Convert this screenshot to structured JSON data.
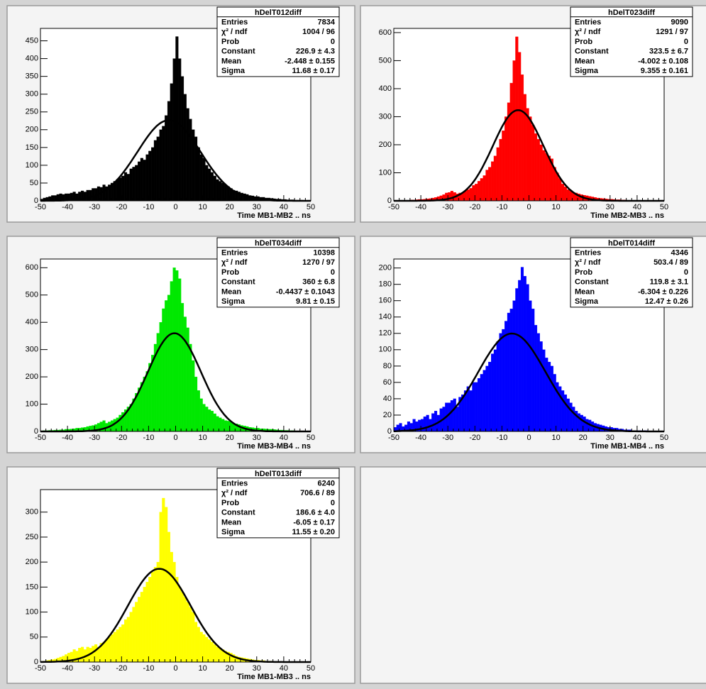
{
  "chart_data": [
    {
      "type": "histogram",
      "title": "hDelT012diff",
      "x_label": "Time MB1-MB2  ..  ns",
      "color": "#000000",
      "fit_color": "#000000",
      "bins": [
        -50,
        -49,
        -48,
        -47,
        -46,
        -45,
        -44,
        -43,
        -42,
        -41,
        -40,
        -39,
        -38,
        -37,
        -36,
        -35,
        -34,
        -33,
        -32,
        -31,
        -30,
        -29,
        -28,
        -27,
        -26,
        -25,
        -24,
        -23,
        -22,
        -21,
        -20,
        -19,
        -18,
        -17,
        -16,
        -15,
        -14,
        -13,
        -12,
        -11,
        -10,
        -9,
        -8,
        -7,
        -6,
        -5,
        -4,
        -3,
        -2,
        -1,
        0,
        1,
        2,
        3,
        4,
        5,
        6,
        7,
        8,
        9,
        10,
        11,
        12,
        13,
        14,
        15,
        16,
        17,
        18,
        19,
        20,
        21,
        22,
        23,
        24,
        25,
        26,
        27,
        28,
        29,
        30,
        31,
        32,
        33,
        34,
        35,
        36,
        37,
        38,
        39,
        40,
        41,
        42,
        43,
        44,
        45,
        46,
        47,
        48,
        49,
        50
      ],
      "values": [
        5,
        8,
        10,
        12,
        15,
        15,
        18,
        20,
        18,
        20,
        20,
        22,
        25,
        20,
        25,
        28,
        25,
        30,
        30,
        35,
        35,
        40,
        38,
        45,
        40,
        45,
        50,
        55,
        60,
        65,
        70,
        80,
        75,
        90,
        95,
        100,
        110,
        120,
        115,
        130,
        140,
        150,
        170,
        180,
        200,
        210,
        240,
        280,
        330,
        400,
        462,
        400,
        350,
        300,
        260,
        230,
        200,
        180,
        150,
        130,
        120,
        100,
        90,
        80,
        70,
        60,
        55,
        50,
        45,
        40,
        35,
        30,
        28,
        25,
        22,
        20,
        18,
        15,
        14,
        12,
        12,
        10,
        10,
        8,
        8,
        7,
        6,
        5,
        5,
        4,
        4,
        3,
        3,
        3,
        2,
        2,
        2,
        1,
        1,
        1
      ],
      "xlim": [
        -50,
        50
      ],
      "xticks": [
        -50,
        -40,
        -30,
        -20,
        -10,
        0,
        10,
        20,
        30,
        40,
        50
      ],
      "ylim": [
        0,
        485
      ],
      "yticks": [
        0,
        50,
        100,
        150,
        200,
        250,
        300,
        350,
        400,
        450
      ],
      "stats": [
        {
          "name": "Entries",
          "value": 7834
        },
        {
          "name": "χ² / ndf",
          "value": "1004 / 96"
        },
        {
          "name": "Prob",
          "value": 0
        },
        {
          "name": "Constant",
          "value": {
            "value": 226.9,
            "error": 4.3,
            "label": "226.9 ± 4.3"
          }
        },
        {
          "name": "Mean",
          "value": {
            "value": -2.448,
            "error": 0.155,
            "label": "-2.448 ± 0.155"
          }
        },
        {
          "name": "Sigma",
          "value": {
            "value": 11.68,
            "error": 0.17,
            "label": "11.68 ± 0.17"
          }
        }
      ]
    },
    {
      "type": "histogram",
      "title": "hDelT023diff",
      "x_label": "Time MB2-MB3  ..  ns",
      "color": "#ff0000",
      "fit_color": "#000000",
      "bins": [
        -50,
        -49,
        -48,
        -47,
        -46,
        -45,
        -44,
        -43,
        -42,
        -41,
        -40,
        -39,
        -38,
        -37,
        -36,
        -35,
        -34,
        -33,
        -32,
        -31,
        -30,
        -29,
        -28,
        -27,
        -26,
        -25,
        -24,
        -23,
        -22,
        -21,
        -20,
        -19,
        -18,
        -17,
        -16,
        -15,
        -14,
        -13,
        -12,
        -11,
        -10,
        -9,
        -8,
        -7,
        -6,
        -5,
        -4,
        -3,
        -2,
        -1,
        0,
        1,
        2,
        3,
        4,
        5,
        6,
        7,
        8,
        9,
        10,
        11,
        12,
        13,
        14,
        15,
        16,
        17,
        18,
        19,
        20,
        21,
        22,
        23,
        24,
        25,
        26,
        27,
        28,
        29,
        30,
        31,
        32,
        33,
        34,
        35,
        36,
        37,
        38,
        39,
        40,
        41,
        42,
        43,
        44,
        45,
        46,
        47,
        48,
        49,
        50
      ],
      "values": [
        0,
        0,
        1,
        1,
        2,
        2,
        3,
        3,
        4,
        5,
        5,
        6,
        7,
        8,
        10,
        12,
        15,
        18,
        22,
        28,
        30,
        35,
        30,
        25,
        28,
        30,
        35,
        40,
        45,
        55,
        60,
        70,
        80,
        90,
        110,
        120,
        140,
        160,
        190,
        220,
        250,
        300,
        350,
        420,
        500,
        585,
        530,
        450,
        380,
        330,
        300,
        270,
        240,
        220,
        200,
        180,
        170,
        160,
        150,
        120,
        100,
        80,
        60,
        50,
        40,
        35,
        30,
        28,
        25,
        22,
        20,
        18,
        16,
        14,
        12,
        10,
        9,
        8,
        7,
        6,
        6,
        5,
        4,
        4,
        3,
        3,
        2,
        2,
        2,
        1,
        1,
        1,
        1,
        1,
        0,
        0,
        0,
        0,
        0,
        0
      ],
      "xlim": [
        -50,
        50
      ],
      "xticks": [
        -50,
        -40,
        -30,
        -20,
        -10,
        0,
        10,
        20,
        30,
        40,
        50
      ],
      "ylim": [
        0,
        615
      ],
      "yticks": [
        0,
        100,
        200,
        300,
        400,
        500,
        600
      ],
      "stats": [
        {
          "name": "Entries",
          "value": 9090
        },
        {
          "name": "χ² / ndf",
          "value": "1291 / 97"
        },
        {
          "name": "Prob",
          "value": 0
        },
        {
          "name": "Constant",
          "value": {
            "value": 323.5,
            "error": 6.7,
            "label": "323.5 ± 6.7"
          }
        },
        {
          "name": "Mean",
          "value": {
            "value": -4.002,
            "error": 0.108,
            "label": "-4.002 ± 0.108"
          }
        },
        {
          "name": "Sigma",
          "value": {
            "value": 9.355,
            "error": 0.161,
            "label": "9.355 ± 0.161"
          }
        }
      ]
    },
    {
      "type": "histogram",
      "title": "hDelT034diff",
      "x_label": "Time MB3-MB4  ..  ns",
      "color": "#00e800",
      "fit_color": "#000000",
      "bins": [
        -50,
        -49,
        -48,
        -47,
        -46,
        -45,
        -44,
        -43,
        -42,
        -41,
        -40,
        -39,
        -38,
        -37,
        -36,
        -35,
        -34,
        -33,
        -32,
        -31,
        -30,
        -29,
        -28,
        -27,
        -26,
        -25,
        -24,
        -23,
        -22,
        -21,
        -20,
        -19,
        -18,
        -17,
        -16,
        -15,
        -14,
        -13,
        -12,
        -11,
        -10,
        -9,
        -8,
        -7,
        -6,
        -5,
        -4,
        -3,
        -2,
        -1,
        0,
        1,
        2,
        3,
        4,
        5,
        6,
        7,
        8,
        9,
        10,
        11,
        12,
        13,
        14,
        15,
        16,
        17,
        18,
        19,
        20,
        21,
        22,
        23,
        24,
        25,
        26,
        27,
        28,
        29,
        30,
        31,
        32,
        33,
        34,
        35,
        36,
        37,
        38,
        39,
        40,
        41,
        42,
        43,
        44,
        45,
        46,
        47,
        48,
        49,
        50
      ],
      "values": [
        2,
        3,
        3,
        4,
        4,
        5,
        5,
        6,
        6,
        8,
        8,
        9,
        10,
        12,
        12,
        14,
        15,
        18,
        20,
        22,
        25,
        30,
        35,
        40,
        30,
        35,
        40,
        45,
        50,
        60,
        70,
        80,
        90,
        100,
        120,
        140,
        160,
        180,
        200,
        220,
        250,
        280,
        320,
        360,
        400,
        450,
        480,
        500,
        550,
        600,
        590,
        560,
        470,
        420,
        380,
        320,
        260,
        200,
        150,
        120,
        100,
        90,
        80,
        75,
        65,
        55,
        50,
        45,
        40,
        38,
        35,
        30,
        28,
        25,
        22,
        20,
        18,
        15,
        14,
        12,
        12,
        10,
        10,
        9,
        8,
        8,
        7,
        6,
        5,
        5,
        4,
        4,
        3,
        3,
        2,
        2,
        2,
        1,
        1,
        1
      ],
      "xlim": [
        -50,
        50
      ],
      "xticks": [
        -50,
        -40,
        -30,
        -20,
        -10,
        0,
        10,
        20,
        30,
        40,
        50
      ],
      "ylim": [
        0,
        632
      ],
      "yticks": [
        0,
        100,
        200,
        300,
        400,
        500,
        600
      ],
      "stats": [
        {
          "name": "Entries",
          "value": 10398
        },
        {
          "name": "χ² / ndf",
          "value": "1270 / 97"
        },
        {
          "name": "Prob",
          "value": 0
        },
        {
          "name": "Constant",
          "value": {
            "value": 360,
            "error": 6.8,
            "label": "360 ± 6.8"
          }
        },
        {
          "name": "Mean",
          "value": {
            "value": -0.4437,
            "error": 0.1043,
            "label": "-0.4437 ± 0.1043"
          }
        },
        {
          "name": "Sigma",
          "value": {
            "value": 9.81,
            "error": 0.15,
            "label": "9.81 ± 0.15"
          }
        }
      ]
    },
    {
      "type": "histogram",
      "title": "hDelT014diff",
      "x_label": "Time MB1-MB4  ..  ns",
      "color": "#0000ff",
      "fit_color": "#000000",
      "bins": [
        -50,
        -49,
        -48,
        -47,
        -46,
        -45,
        -44,
        -43,
        -42,
        -41,
        -40,
        -39,
        -38,
        -37,
        -36,
        -35,
        -34,
        -33,
        -32,
        -31,
        -30,
        -29,
        -28,
        -27,
        -26,
        -25,
        -24,
        -23,
        -22,
        -21,
        -20,
        -19,
        -18,
        -17,
        -16,
        -15,
        -14,
        -13,
        -12,
        -11,
        -10,
        -9,
        -8,
        -7,
        -6,
        -5,
        -4,
        -3,
        -2,
        -1,
        0,
        1,
        2,
        3,
        4,
        5,
        6,
        7,
        8,
        9,
        10,
        11,
        12,
        13,
        14,
        15,
        16,
        17,
        18,
        19,
        20,
        21,
        22,
        23,
        24,
        25,
        26,
        27,
        28,
        29,
        30,
        31,
        32,
        33,
        34,
        35,
        36,
        37,
        38,
        39,
        40,
        41,
        42,
        43,
        44,
        45,
        46,
        47,
        48,
        49,
        50
      ],
      "values": [
        5,
        8,
        10,
        6,
        8,
        12,
        10,
        15,
        12,
        14,
        15,
        18,
        20,
        15,
        22,
        25,
        20,
        28,
        30,
        35,
        35,
        38,
        40,
        30,
        42,
        45,
        50,
        55,
        50,
        60,
        60,
        65,
        70,
        75,
        80,
        85,
        95,
        100,
        110,
        120,
        125,
        135,
        145,
        150,
        160,
        175,
        185,
        201,
        190,
        180,
        160,
        150,
        130,
        120,
        110,
        100,
        90,
        85,
        80,
        70,
        60,
        55,
        50,
        45,
        40,
        35,
        30,
        25,
        22,
        20,
        18,
        15,
        14,
        12,
        10,
        9,
        8,
        7,
        6,
        5,
        5,
        4,
        4,
        3,
        3,
        2,
        2,
        2,
        1,
        1,
        1,
        1,
        1,
        1,
        0,
        0,
        0,
        0,
        0,
        0
      ],
      "xlim": [
        -50,
        50
      ],
      "xticks": [
        -50,
        -40,
        -30,
        -20,
        -10,
        0,
        10,
        20,
        30,
        40,
        50
      ],
      "ylim": [
        0,
        211
      ],
      "yticks": [
        0,
        20,
        40,
        60,
        80,
        100,
        120,
        140,
        160,
        180,
        200
      ],
      "stats": [
        {
          "name": "Entries",
          "value": 4346
        },
        {
          "name": "χ² / ndf",
          "value": "503.4 / 89"
        },
        {
          "name": "Prob",
          "value": 0
        },
        {
          "name": "Constant",
          "value": {
            "value": 119.8,
            "error": 3.1,
            "label": "119.8 ± 3.1"
          }
        },
        {
          "name": "Mean",
          "value": {
            "value": -6.304,
            "error": 0.226,
            "label": "-6.304 ± 0.226"
          }
        },
        {
          "name": "Sigma",
          "value": {
            "value": 12.47,
            "error": 0.26,
            "label": "12.47 ± 0.26"
          }
        }
      ]
    },
    {
      "type": "histogram",
      "title": "hDelT013diff",
      "x_label": "Time MB1-MB3  ..  ns",
      "color": "#ffff00",
      "fit_color": "#000000",
      "bins": [
        -50,
        -49,
        -48,
        -47,
        -46,
        -45,
        -44,
        -43,
        -42,
        -41,
        -40,
        -39,
        -38,
        -37,
        -36,
        -35,
        -34,
        -33,
        -32,
        -31,
        -30,
        -29,
        -28,
        -27,
        -26,
        -25,
        -24,
        -23,
        -22,
        -21,
        -20,
        -19,
        -18,
        -17,
        -16,
        -15,
        -14,
        -13,
        -12,
        -11,
        -10,
        -9,
        -8,
        -7,
        -6,
        -5,
        -4,
        -3,
        -2,
        -1,
        0,
        1,
        2,
        3,
        4,
        5,
        6,
        7,
        8,
        9,
        10,
        11,
        12,
        13,
        14,
        15,
        16,
        17,
        18,
        19,
        20,
        21,
        22,
        23,
        24,
        25,
        26,
        27,
        28,
        29,
        30,
        31,
        32,
        33,
        34,
        35,
        36,
        37,
        38,
        39,
        40,
        41,
        42,
        43,
        44,
        45,
        46,
        47,
        48,
        49,
        50
      ],
      "values": [
        1,
        2,
        3,
        4,
        5,
        6,
        8,
        10,
        12,
        15,
        18,
        20,
        25,
        22,
        28,
        30,
        25,
        30,
        28,
        32,
        35,
        30,
        38,
        40,
        45,
        50,
        55,
        60,
        65,
        70,
        75,
        85,
        90,
        100,
        110,
        120,
        130,
        140,
        150,
        160,
        170,
        180,
        190,
        200,
        300,
        328,
        310,
        260,
        220,
        200,
        170,
        150,
        140,
        130,
        120,
        110,
        100,
        80,
        70,
        60,
        55,
        50,
        45,
        40,
        35,
        30,
        28,
        25,
        22,
        20,
        18,
        15,
        12,
        10,
        9,
        8,
        7,
        6,
        5,
        4,
        4,
        3,
        3,
        2,
        2,
        2,
        1,
        1,
        1,
        0,
        0,
        0,
        0,
        0,
        0,
        0,
        0,
        0,
        0,
        0
      ],
      "xlim": [
        -50,
        50
      ],
      "xticks": [
        -50,
        -40,
        -30,
        -20,
        -10,
        0,
        10,
        20,
        30,
        40,
        50
      ],
      "ylim": [
        0,
        345
      ],
      "yticks": [
        0,
        50,
        100,
        150,
        200,
        250,
        300
      ],
      "stats": [
        {
          "name": "Entries",
          "value": 6240
        },
        {
          "name": "χ² / ndf",
          "value": "706.6 / 89"
        },
        {
          "name": "Prob",
          "value": 0
        },
        {
          "name": "Constant",
          "value": {
            "value": 186.6,
            "error": 4.0,
            "label": "186.6 ± 4.0"
          }
        },
        {
          "name": "Mean",
          "value": {
            "value": -6.05,
            "error": 0.17,
            "label": "-6.05 ± 0.17"
          }
        },
        {
          "name": "Sigma",
          "value": {
            "value": 11.55,
            "error": 0.2,
            "label": "11.55 ± 0.20"
          }
        }
      ]
    }
  ]
}
